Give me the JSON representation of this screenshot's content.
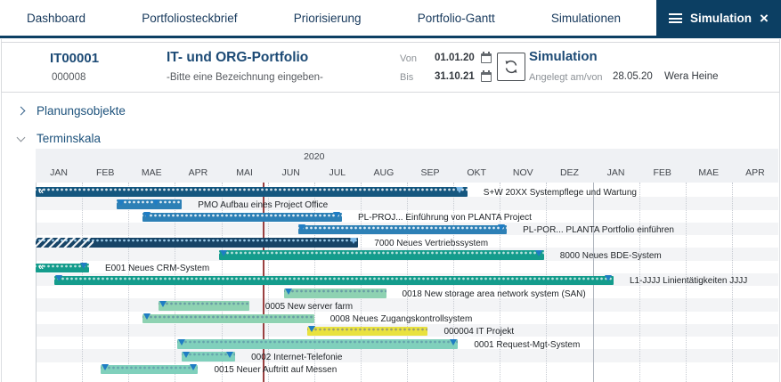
{
  "nav": {
    "items": [
      "Dashboard",
      "Portfoliosteckbrief",
      "Priorisierung",
      "Portfolio-Gantt",
      "Simulationen"
    ],
    "active_tab": {
      "label": "Simulation",
      "close_glyph": "×"
    }
  },
  "header": {
    "id": "IT00001",
    "sub_id": "000008",
    "title": "IT- und ORG-Portfolio",
    "subtitle": "-Bitte eine Bezeichnung eingeben-",
    "von_label": "Von",
    "von_value": "01.01.20",
    "bis_label": "Bis",
    "bis_value": "31.10.21",
    "sim_title": "Simulation",
    "created_label": "Angelegt am/von",
    "created_date": "28.05.20",
    "created_by": "Wera Heine"
  },
  "sections": {
    "planungsobjekte": "Planungsobjekte",
    "terminskala": "Terminskala"
  },
  "timeline": {
    "year": "2020",
    "months": [
      "JAN",
      "FEB",
      "MAE",
      "APR",
      "MAI",
      "JUN",
      "JUL",
      "AUG",
      "SEP",
      "OKT",
      "NOV",
      "DEZ",
      "JAN",
      "FEB",
      "MAE",
      "APR"
    ],
    "second_year_start_index": 12,
    "today_marker_month": 4.9
  },
  "gantt": {
    "clip_glyph": "«",
    "colors": {
      "dark": "#15577f",
      "navy": "#174467",
      "blue": "#2d80b6",
      "teal": "#149c8c",
      "mint": "#8ed2b2",
      "aqua": "#80d0bc",
      "yellow": "#e9e23e",
      "marker": "#1f7dc4",
      "today_line": "#9a4141"
    },
    "rows": [
      {
        "label": "S+W 20XX Systempflege und Wartung",
        "start": 0,
        "end": 9.3,
        "style": "dark",
        "clip_left": true,
        "markers": [
          9.15
        ]
      },
      {
        "label": "PMO  Aufbau eines Project Office",
        "start": 1.75,
        "end": 3.15,
        "style": "blue",
        "clip_left": false,
        "markers": [
          1.85,
          2.6
        ]
      },
      {
        "label": "PL-PROJ...  Einführung von PLANTA Project",
        "start": 2.3,
        "end": 6.6,
        "style": "blue",
        "clip_left": false,
        "markers": [
          2.4,
          6.5
        ]
      },
      {
        "label": "PL-POR...   PLANTA Portfolio einführen",
        "start": 5.65,
        "end": 10.15,
        "style": "blue",
        "clip_left": false,
        "markers": [
          5.75,
          10.05
        ]
      },
      {
        "label": "7000 Neues Vertriebssystem",
        "start": 0,
        "end": 6.95,
        "style": "navy",
        "clip_left": false,
        "hatch_to": 1.25,
        "markers": [
          6.85
        ]
      },
      {
        "label": "8000 Neues BDE-System",
        "start": 3.95,
        "end": 10.95,
        "style": "teal",
        "clip_left": false,
        "markers": [
          4.05,
          10.85
        ]
      },
      {
        "label": "E001 Neues CRM-System",
        "start": 0,
        "end": 1.15,
        "style": "teal",
        "clip_left": true,
        "markers": [
          1.05
        ]
      },
      {
        "label": "L1-JJJJ Linientätigkeiten JJJJ",
        "start": 0.4,
        "end": 12.45,
        "style": "teal",
        "clip_left": false,
        "markers": [
          0.5,
          12.35
        ]
      },
      {
        "label": "0018 New storage area network system (SAN)",
        "start": 5.35,
        "end": 7.55,
        "style": "mint",
        "clip_left": false,
        "markers": [
          5.45
        ]
      },
      {
        "label": "0005 New server farm",
        "start": 2.65,
        "end": 4.6,
        "style": "mint",
        "clip_left": false,
        "markers": [
          2.75
        ]
      },
      {
        "label": "0008 Neues Zugangskontrollsystem",
        "start": 2.3,
        "end": 6.0,
        "style": "mint",
        "clip_left": false,
        "markers": [
          2.4
        ]
      },
      {
        "label": "000004 IT Projekt",
        "start": 5.85,
        "end": 8.45,
        "style": "yellow",
        "clip_left": false,
        "markers": [
          5.95
        ]
      },
      {
        "label": "0001 Request-Mgt-System",
        "start": 3.05,
        "end": 9.1,
        "style": "aqua",
        "clip_left": false,
        "markers": [
          3.15,
          9.0
        ]
      },
      {
        "label": "0002 Internet-Telefonie",
        "start": 3.15,
        "end": 4.3,
        "style": "aqua",
        "clip_left": false,
        "markers": [
          3.25,
          4.2
        ]
      },
      {
        "label": "0015 Neuer Auftritt auf Messen",
        "start": 1.4,
        "end": 3.5,
        "style": "aqua",
        "clip_left": false,
        "markers": [
          1.5,
          3.4
        ]
      }
    ]
  }
}
